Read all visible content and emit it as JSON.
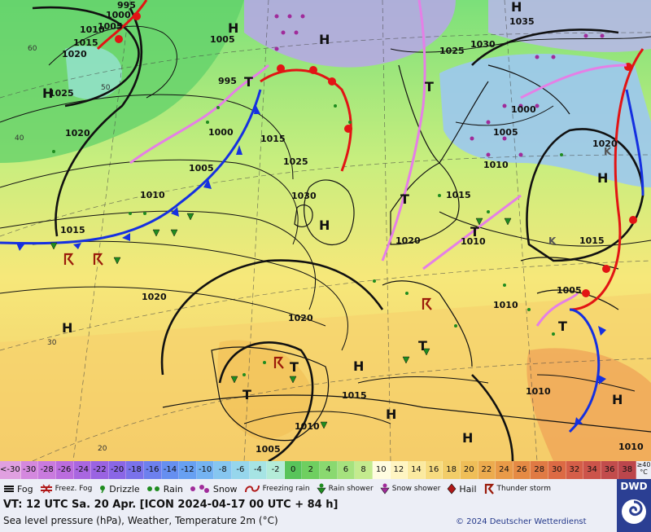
{
  "map": {
    "isobar_labels": [
      "995",
      "1000",
      "1005",
      "1010",
      "1015",
      "1020",
      "1025",
      "1030",
      "1035"
    ],
    "pressure_centers": [
      "H",
      "T",
      "K"
    ],
    "lat_labels": [
      "20",
      "30",
      "40",
      "50",
      "60"
    ]
  },
  "legend": {
    "scale_values": [
      "<-30",
      "-30",
      "-28",
      "-26",
      "-24",
      "-22",
      "-20",
      "-18",
      "-16",
      "-14",
      "-12",
      "-10",
      "-8",
      "-6",
      "-4",
      "-2",
      "0",
      "2",
      "4",
      "6",
      "8",
      "10",
      "12",
      "14",
      "16",
      "18",
      "20",
      "22",
      "24",
      "26",
      "28",
      "30",
      "32",
      "34",
      "36",
      "38"
    ],
    "scale_colors": [
      "#e0a0e0",
      "#d488de",
      "#c97ade",
      "#bb6cde",
      "#a966e0",
      "#9a63e2",
      "#8a66e6",
      "#7a72ea",
      "#6d80ee",
      "#668ff0",
      "#67a0f2",
      "#74b3f2",
      "#86c6f0",
      "#96d6ec",
      "#a6e4e4",
      "#b4ecd8",
      "#58c45a",
      "#6fcf60",
      "#8ad970",
      "#a6e27e",
      "#c4eb8e",
      "#fffce0",
      "#fff5c2",
      "#fbeaa0",
      "#f7dc80",
      "#f2cd68",
      "#efbe58",
      "#ecab4e",
      "#e99a48",
      "#e58a44",
      "#e07a44",
      "#dc6a44",
      "#d55e48",
      "#cc544a",
      "#c24c4c",
      "#bc464c"
    ],
    "scale_unit": "≥40 °C",
    "symbols": [
      {
        "icon": "fog-icon",
        "label": "Fog"
      },
      {
        "icon": "freezing-fog-icon",
        "label": "Freez. Fog"
      },
      {
        "icon": "drizzle-icon",
        "label": "Drizzle"
      },
      {
        "icon": "rain-icon",
        "label": "Rain"
      },
      {
        "icon": "snow-icon",
        "label": "Snow"
      },
      {
        "icon": "freezing-rain-icon",
        "label": "Freezing rain"
      },
      {
        "icon": "rain-shower-icon",
        "label": "Rain shower"
      },
      {
        "icon": "snow-shower-icon",
        "label": "Snow shower"
      },
      {
        "icon": "hail-icon",
        "label": "Hail"
      },
      {
        "icon": "thunderstorm-icon",
        "label": "Thunder storm"
      }
    ],
    "valid_time": "VT: 12 UTC Sa.  20 Apr. [ICON 2024-04-17  00 UTC + 84 h]",
    "subtitle": "Sea level pressure (hPa), Weather, Temperature 2m (°C)",
    "copyright": "© 2024 Deutscher Wetterdienst",
    "logo_text": "DWD"
  }
}
